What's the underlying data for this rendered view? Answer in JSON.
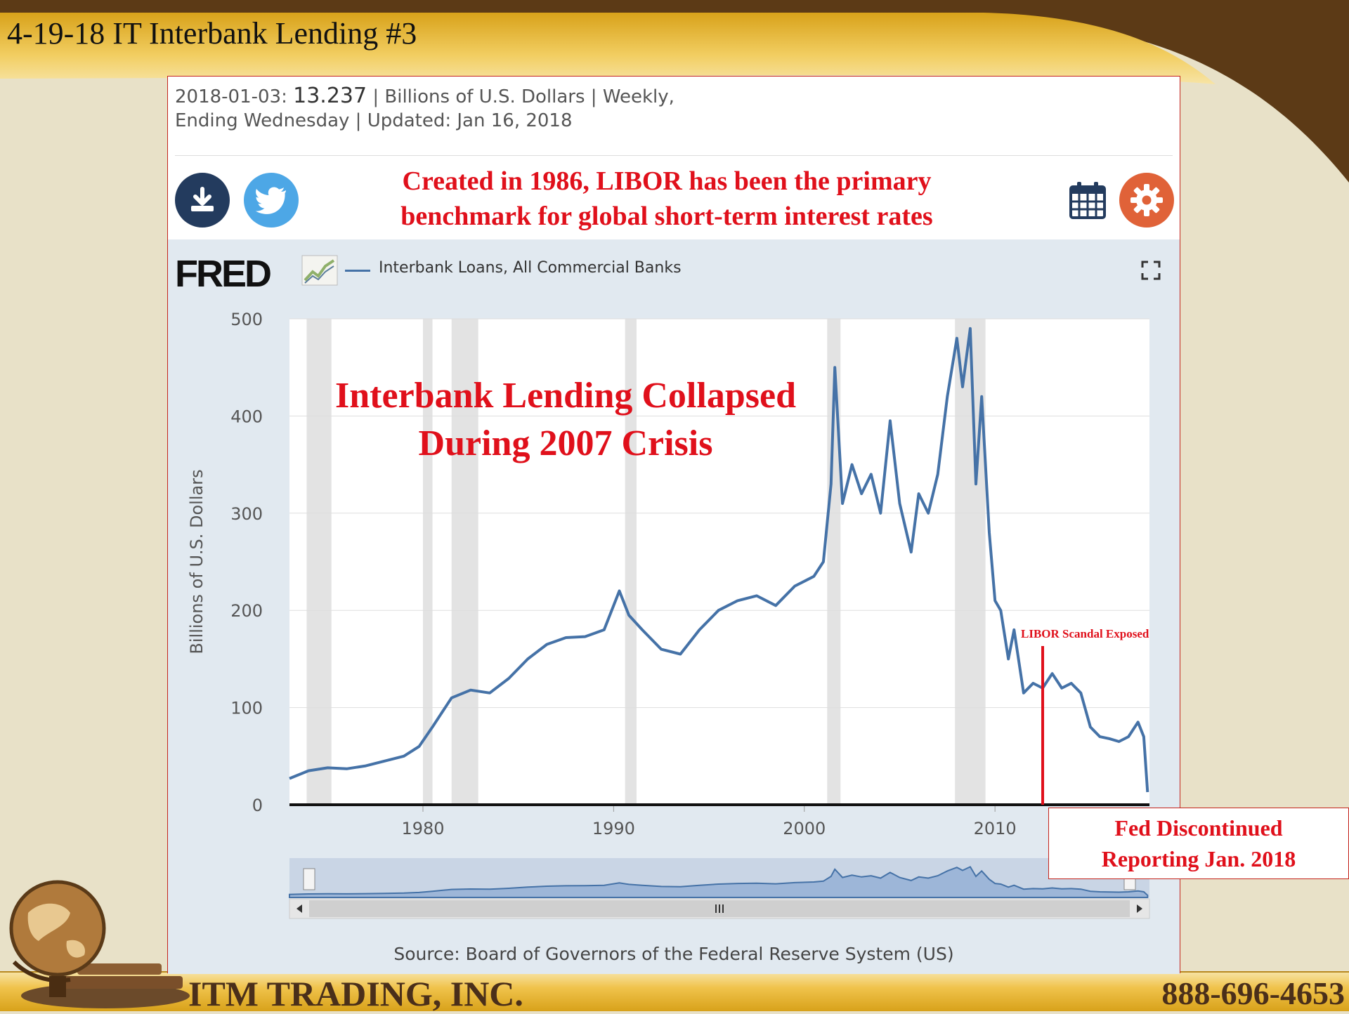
{
  "slide": {
    "title": "4-19-18 IT Interbank Lending #3",
    "company": "ITM TRADING, INC.",
    "phone": "888-696-4653"
  },
  "info": {
    "date_label": "2018-01-03:",
    "value": "13.237",
    "rest_line1": "| Billions of U.S. Dollars | Weekly,",
    "line2": "Ending Wednesday | Updated: Jan 16, 2018"
  },
  "toolbar": {
    "caption_line1": "Created in 1986, LIBOR has been the primary",
    "caption_line2": "benchmark for global short-term interest rates"
  },
  "fred": {
    "logo": "FRED",
    "legend": "Interbank Loans, All Commercial Banks",
    "source": "Source: Board of Governors of the Federal Reserve System (US)"
  },
  "annotations": {
    "collapse_line1": "Interbank Lending Collapsed",
    "collapse_line2": "During 2007 Crisis",
    "libor_label": "LIBOR Scandal Exposed",
    "libor_year": 2012.5,
    "fed_line1": "Fed Discontinued",
    "fed_line2": "Reporting Jan. 2018"
  },
  "colors": {
    "series": "#4572a7",
    "annotation": "#e0101b",
    "recession_band": "#e3e3e3",
    "chart_background": "#e1e9f0"
  },
  "chart_data": {
    "type": "line",
    "title": "",
    "xlabel": "",
    "ylabel": "Billions of U.S. Dollars",
    "xlim": [
      1973,
      2018.1
    ],
    "ylim": [
      0,
      500
    ],
    "x_ticks": [
      1980,
      1990,
      2000,
      2010
    ],
    "y_ticks": [
      0,
      100,
      200,
      300,
      400,
      500
    ],
    "grid": true,
    "legend": "top-left",
    "recessions": [
      [
        1973.9,
        1975.2
      ],
      [
        1980.0,
        1980.5
      ],
      [
        1981.5,
        1982.9
      ],
      [
        1990.6,
        1991.2
      ],
      [
        2001.2,
        2001.9
      ],
      [
        2007.9,
        2009.5
      ]
    ],
    "series": [
      {
        "name": "Interbank Loans, All Commercial Banks",
        "x": [
          1973.0,
          1974.0,
          1975.0,
          1976.0,
          1977.0,
          1978.0,
          1979.0,
          1979.8,
          1980.5,
          1981.0,
          1981.5,
          1982.5,
          1983.5,
          1984.5,
          1985.5,
          1986.5,
          1987.5,
          1988.5,
          1989.5,
          1990.3,
          1990.8,
          1991.5,
          1992.5,
          1993.5,
          1994.5,
          1995.5,
          1996.5,
          1997.5,
          1998.5,
          1999.5,
          2000.5,
          2001.0,
          2001.4,
          2001.6,
          2002.0,
          2002.5,
          2003.0,
          2003.5,
          2004.0,
          2004.5,
          2005.0,
          2005.6,
          2006.0,
          2006.5,
          2007.0,
          2007.5,
          2008.0,
          2008.3,
          2008.7,
          2009.0,
          2009.3,
          2009.7,
          2010.0,
          2010.3,
          2010.7,
          2011.0,
          2011.5,
          2012.0,
          2012.5,
          2013.0,
          2013.5,
          2014.0,
          2014.5,
          2015.0,
          2015.5,
          2016.0,
          2016.5,
          2017.0,
          2017.5,
          2017.8,
          2018.0
        ],
        "values": [
          27,
          35,
          38,
          37,
          40,
          45,
          50,
          60,
          80,
          95,
          110,
          118,
          115,
          130,
          150,
          165,
          172,
          173,
          180,
          220,
          195,
          180,
          160,
          155,
          180,
          200,
          210,
          215,
          205,
          225,
          235,
          250,
          330,
          450,
          310,
          350,
          320,
          340,
          300,
          395,
          310,
          260,
          320,
          300,
          340,
          420,
          480,
          430,
          490,
          330,
          420,
          280,
          210,
          200,
          150,
          180,
          115,
          125,
          120,
          135,
          120,
          125,
          115,
          80,
          70,
          68,
          65,
          70,
          85,
          70,
          13
        ]
      }
    ]
  }
}
